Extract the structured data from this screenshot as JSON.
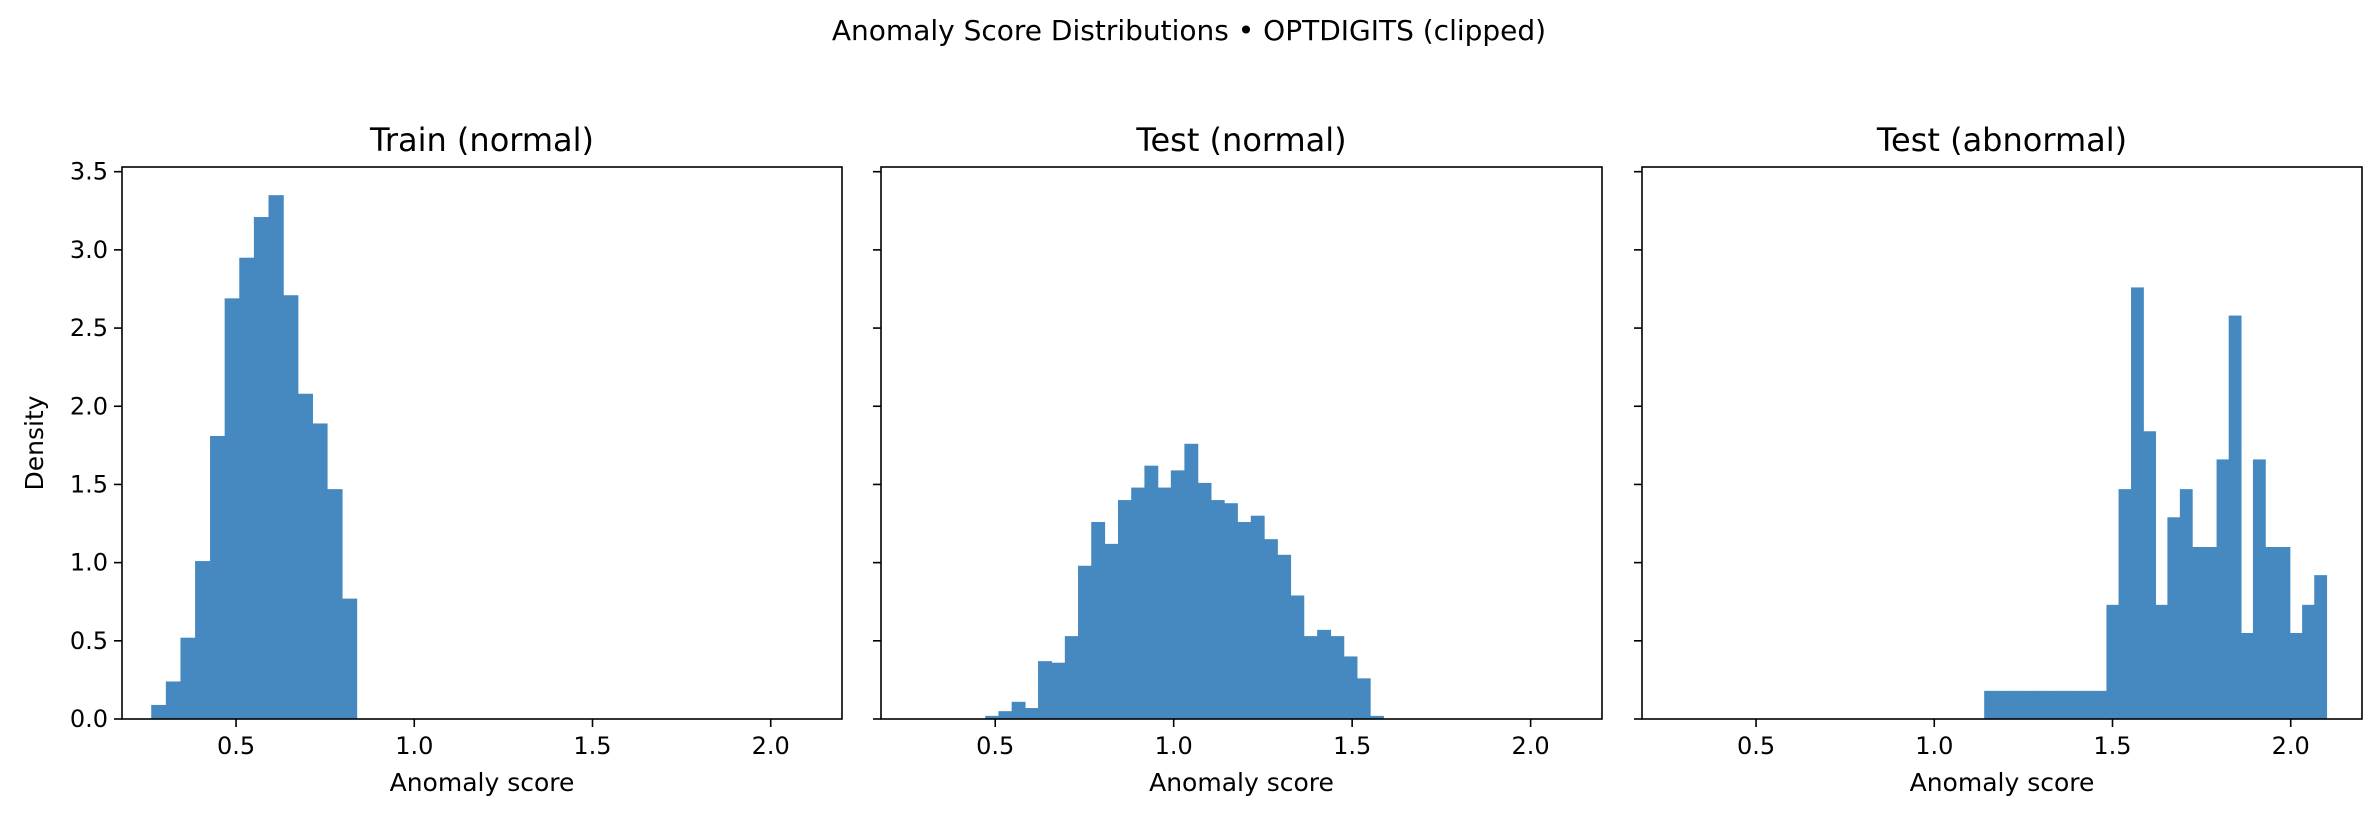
{
  "figure": {
    "suptitle": "Anomaly Score Distributions • OPTDIGITS (clipped)",
    "bar_color": "#4589c0"
  },
  "chart_data": [
    {
      "type": "bar",
      "title": "Train (normal)",
      "xlabel": "Anomaly score",
      "ylabel": "Density",
      "xlim": [
        0.18,
        2.2
      ],
      "ylim": [
        0,
        3.53
      ],
      "xticks": [
        0.5,
        1.0,
        1.5,
        2.0
      ],
      "xtick_labels": [
        "0.5",
        "1.0",
        "1.5",
        "2.0"
      ],
      "yticks": [
        0.0,
        0.5,
        1.0,
        1.5,
        2.0,
        2.5,
        3.0,
        3.5
      ],
      "ytick_labels": [
        "0.0",
        "0.5",
        "1.0",
        "1.5",
        "2.0",
        "2.5",
        "3.0",
        "3.5"
      ],
      "grid": false,
      "bin_width": 0.0411,
      "bins": [
        {
          "x": 0.262,
          "y": 0.09
        },
        {
          "x": 0.303,
          "y": 0.24
        },
        {
          "x": 0.344,
          "y": 0.52
        },
        {
          "x": 0.385,
          "y": 1.01
        },
        {
          "x": 0.427,
          "y": 1.81
        },
        {
          "x": 0.468,
          "y": 2.69
        },
        {
          "x": 0.509,
          "y": 2.95
        },
        {
          "x": 0.55,
          "y": 3.21
        },
        {
          "x": 0.591,
          "y": 3.35
        },
        {
          "x": 0.632,
          "y": 2.71
        },
        {
          "x": 0.673,
          "y": 2.08
        },
        {
          "x": 0.714,
          "y": 1.89
        },
        {
          "x": 0.756,
          "y": 1.47
        },
        {
          "x": 0.797,
          "y": 0.77
        }
      ]
    },
    {
      "type": "bar",
      "title": "Test (normal)",
      "xlabel": "Anomaly score",
      "ylabel": "",
      "xlim": [
        0.18,
        2.2
      ],
      "ylim": [
        0,
        3.53
      ],
      "xticks": [
        0.5,
        1.0,
        1.5,
        2.0
      ],
      "xtick_labels": [
        "0.5",
        "1.0",
        "1.5",
        "2.0"
      ],
      "yticks": [
        0.0,
        0.5,
        1.0,
        1.5,
        2.0,
        2.5,
        3.0,
        3.5
      ],
      "ytick_labels": [],
      "grid": false,
      "bin_width": 0.0372,
      "bins": [
        {
          "x": 0.472,
          "y": 0.02
        },
        {
          "x": 0.509,
          "y": 0.05
        },
        {
          "x": 0.546,
          "y": 0.11
        },
        {
          "x": 0.583,
          "y": 0.07
        },
        {
          "x": 0.62,
          "y": 0.37
        },
        {
          "x": 0.658,
          "y": 0.36
        },
        {
          "x": 0.695,
          "y": 0.53
        },
        {
          "x": 0.732,
          "y": 0.98
        },
        {
          "x": 0.769,
          "y": 1.26
        },
        {
          "x": 0.806,
          "y": 1.12
        },
        {
          "x": 0.844,
          "y": 1.4
        },
        {
          "x": 0.881,
          "y": 1.48
        },
        {
          "x": 0.918,
          "y": 1.62
        },
        {
          "x": 0.955,
          "y": 1.48
        },
        {
          "x": 0.992,
          "y": 1.59
        },
        {
          "x": 1.03,
          "y": 1.76
        },
        {
          "x": 1.067,
          "y": 1.51
        },
        {
          "x": 1.104,
          "y": 1.4
        },
        {
          "x": 1.141,
          "y": 1.38
        },
        {
          "x": 1.178,
          "y": 1.26
        },
        {
          "x": 1.216,
          "y": 1.3
        },
        {
          "x": 1.253,
          "y": 1.15
        },
        {
          "x": 1.29,
          "y": 1.05
        },
        {
          "x": 1.327,
          "y": 0.79
        },
        {
          "x": 1.364,
          "y": 0.53
        },
        {
          "x": 1.402,
          "y": 0.57
        },
        {
          "x": 1.439,
          "y": 0.53
        },
        {
          "x": 1.476,
          "y": 0.4
        },
        {
          "x": 1.513,
          "y": 0.26
        },
        {
          "x": 1.55,
          "y": 0.02
        }
      ]
    },
    {
      "type": "bar",
      "title": "Test (abnormal)",
      "xlabel": "Anomaly score",
      "ylabel": "",
      "xlim": [
        0.18,
        2.2
      ],
      "ylim": [
        0,
        3.53
      ],
      "xticks": [
        0.5,
        1.0,
        1.5,
        2.0
      ],
      "xtick_labels": [
        "0.5",
        "1.0",
        "1.5",
        "2.0"
      ],
      "yticks": [
        0.0,
        0.5,
        1.0,
        1.5,
        2.0,
        2.5,
        3.0,
        3.5
      ],
      "ytick_labels": [],
      "grid": false,
      "bin_width": 0.0343,
      "bins": [
        {
          "x": 1.14,
          "y": 0.18
        },
        {
          "x": 1.174,
          "y": 0.18
        },
        {
          "x": 1.209,
          "y": 0.18
        },
        {
          "x": 1.243,
          "y": 0.18
        },
        {
          "x": 1.277,
          "y": 0.18
        },
        {
          "x": 1.312,
          "y": 0.18
        },
        {
          "x": 1.346,
          "y": 0.18
        },
        {
          "x": 1.38,
          "y": 0.18
        },
        {
          "x": 1.414,
          "y": 0.18
        },
        {
          "x": 1.449,
          "y": 0.18
        },
        {
          "x": 1.483,
          "y": 0.73
        },
        {
          "x": 1.517,
          "y": 1.47
        },
        {
          "x": 1.552,
          "y": 2.76
        },
        {
          "x": 1.586,
          "y": 1.84
        },
        {
          "x": 1.62,
          "y": 0.73
        },
        {
          "x": 1.654,
          "y": 1.29
        },
        {
          "x": 1.689,
          "y": 1.47
        },
        {
          "x": 1.723,
          "y": 1.1
        },
        {
          "x": 1.757,
          "y": 1.1
        },
        {
          "x": 1.792,
          "y": 1.66
        },
        {
          "x": 1.826,
          "y": 2.58
        },
        {
          "x": 1.86,
          "y": 0.55
        },
        {
          "x": 1.894,
          "y": 1.66
        },
        {
          "x": 1.929,
          "y": 1.1
        },
        {
          "x": 1.963,
          "y": 1.1
        },
        {
          "x": 1.997,
          "y": 0.55
        },
        {
          "x": 2.032,
          "y": 0.73
        },
        {
          "x": 2.066,
          "y": 0.92
        }
      ]
    }
  ]
}
